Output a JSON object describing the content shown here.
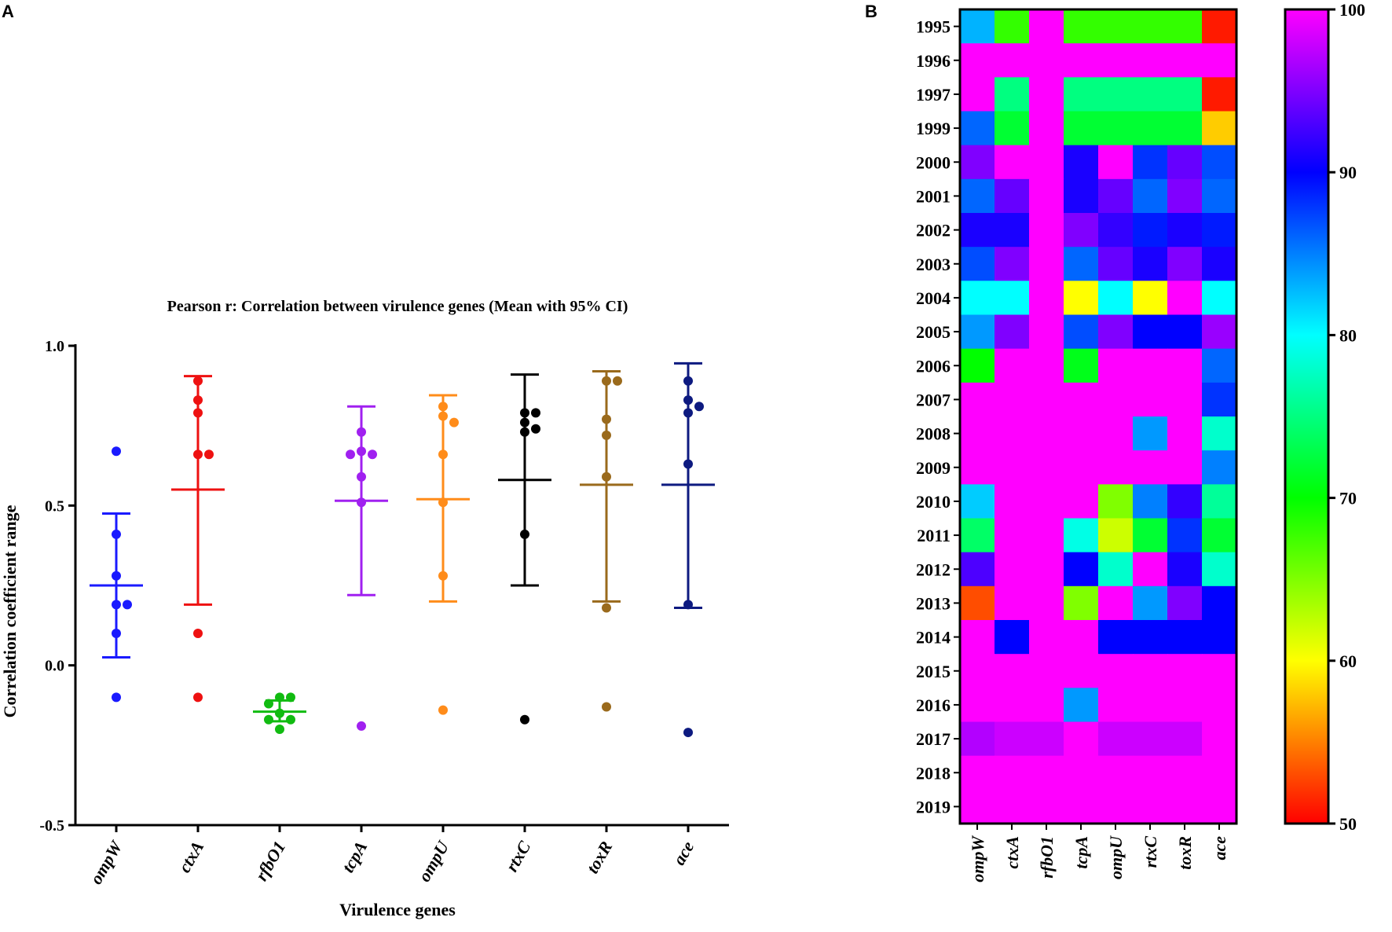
{
  "panel_a_label": "A",
  "panel_b_label": "B",
  "chart_data": [
    {
      "type": "scatter",
      "title": "Pearson r: Correlation between virulence genes (Mean with 95% CI)",
      "xlabel": "Virulence genes",
      "ylabel": "Correlation coefficient range",
      "ylim": [
        -0.5,
        1.0
      ],
      "yticks": [
        -0.5,
        0.0,
        0.5,
        1.0
      ],
      "ytick_labels": [
        "-0.5",
        "0.0",
        "0.5",
        "1.0"
      ],
      "categories": [
        "ompW",
        "ctxA",
        "rfbO1",
        "tcpA",
        "ompU",
        "rtxC",
        "toxR",
        "ace"
      ],
      "series": [
        {
          "name": "ompW",
          "color": "#1a1aff",
          "points": [
            0.67,
            0.41,
            0.28,
            0.19,
            0.19,
            0.1,
            -0.1
          ],
          "mean": 0.25,
          "ci": [
            0.025,
            0.475
          ]
        },
        {
          "name": "ctxA",
          "color": "#ee1111",
          "points": [
            0.89,
            0.83,
            0.79,
            0.66,
            0.66,
            0.1,
            -0.1
          ],
          "mean": 0.55,
          "ci": [
            0.19,
            0.905
          ]
        },
        {
          "name": "rfbO1",
          "color": "#11bb11",
          "points": [
            -0.1,
            -0.1,
            -0.12,
            -0.15,
            -0.17,
            -0.17,
            -0.2
          ],
          "mean": -0.145,
          "ci": [
            -0.175,
            -0.11
          ]
        },
        {
          "name": "tcpA",
          "color": "#a020f0",
          "points": [
            0.73,
            0.67,
            0.66,
            0.66,
            0.59,
            0.51,
            -0.19
          ],
          "mean": 0.515,
          "ci": [
            0.22,
            0.81
          ]
        },
        {
          "name": "ompU",
          "color": "#ff8c1a",
          "points": [
            0.81,
            0.78,
            0.76,
            0.66,
            0.51,
            0.28,
            -0.14
          ],
          "mean": 0.52,
          "ci": [
            0.2,
            0.845
          ]
        },
        {
          "name": "rtxC",
          "color": "#000000",
          "points": [
            0.79,
            0.79,
            0.76,
            0.74,
            0.73,
            0.41,
            -0.17
          ],
          "mean": 0.58,
          "ci": [
            0.25,
            0.91
          ]
        },
        {
          "name": "toxR",
          "color": "#9a6a1c",
          "points": [
            0.89,
            0.89,
            0.77,
            0.72,
            0.59,
            0.18,
            -0.13
          ],
          "mean": 0.565,
          "ci": [
            0.2,
            0.92
          ]
        },
        {
          "name": "ace",
          "color": "#0d1a80",
          "points": [
            0.89,
            0.83,
            0.81,
            0.79,
            0.63,
            0.19,
            -0.21
          ],
          "mean": 0.565,
          "ci": [
            0.18,
            0.945
          ]
        }
      ]
    },
    {
      "type": "heatmap",
      "x_categories": [
        "ompW",
        "ctxA",
        "rfbO1",
        "tcpA",
        "ompU",
        "rtxC",
        "toxR",
        "ace"
      ],
      "y_categories": [
        "1995",
        "1996",
        "1997",
        "1999",
        "2000",
        "2001",
        "2002",
        "2003",
        "2004",
        "2005",
        "2006",
        "2007",
        "2008",
        "2009",
        "2010",
        "2011",
        "2012",
        "2013",
        "2014",
        "2015",
        "2016",
        "2017",
        "2018",
        "2019"
      ],
      "values": [
        [
          83,
          68,
          100,
          68,
          68,
          68,
          68,
          51
        ],
        [
          100,
          100,
          100,
          100,
          100,
          100,
          100,
          100
        ],
        [
          100,
          75,
          100,
          75,
          75,
          75,
          75,
          51
        ],
        [
          86,
          72,
          100,
          72,
          72,
          72,
          72,
          58
        ],
        [
          95,
          100,
          100,
          91,
          100,
          88,
          94,
          87
        ],
        [
          86,
          94,
          100,
          91,
          94,
          86,
          95,
          86
        ],
        [
          91,
          91,
          100,
          95,
          92,
          89,
          91,
          89
        ],
        [
          87,
          95,
          100,
          86,
          94,
          91,
          95,
          91
        ],
        [
          80,
          80,
          100,
          60,
          80,
          60,
          100,
          80
        ],
        [
          84,
          95,
          100,
          87,
          95,
          90,
          90,
          96
        ],
        [
          70,
          100,
          100,
          71,
          100,
          100,
          100,
          86
        ],
        [
          100,
          100,
          100,
          100,
          100,
          100,
          100,
          88
        ],
        [
          100,
          100,
          100,
          100,
          100,
          84,
          100,
          78
        ],
        [
          100,
          100,
          100,
          100,
          100,
          100,
          100,
          85
        ],
        [
          82,
          100,
          100,
          100,
          65,
          85,
          92,
          76
        ],
        [
          74,
          100,
          100,
          79,
          62,
          72,
          88,
          72
        ],
        [
          93,
          100,
          100,
          90,
          78,
          100,
          91,
          78
        ],
        [
          53,
          100,
          100,
          65,
          100,
          84,
          95,
          90
        ],
        [
          100,
          90,
          100,
          100,
          90,
          90,
          90,
          90
        ],
        [
          100,
          100,
          100,
          100,
          100,
          100,
          100,
          100
        ],
        [
          100,
          100,
          100,
          84,
          100,
          100,
          100,
          100
        ],
        [
          97,
          98,
          98,
          100,
          98,
          98,
          98,
          100
        ],
        [
          100,
          100,
          100,
          100,
          100,
          100,
          100,
          100
        ],
        [
          100,
          100,
          100,
          100,
          100,
          100,
          100,
          100
        ]
      ],
      "colorbar": {
        "min": 50,
        "max": 100,
        "ticks": [
          50,
          60,
          70,
          80,
          90,
          100
        ],
        "tick_labels": [
          "50",
          "60",
          "70",
          "80",
          "90",
          "100"
        ]
      }
    }
  ]
}
